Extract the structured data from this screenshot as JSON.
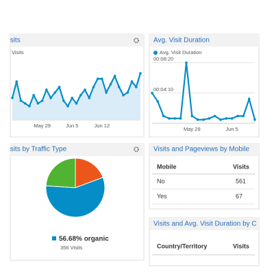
{
  "visits": {
    "title": "Visits",
    "legend": "Visits",
    "categories": [
      null,
      null,
      null,
      null,
      null,
      null,
      null,
      "May 29",
      null,
      null,
      null,
      null,
      null,
      null,
      "Jun 5",
      null,
      null,
      null,
      null,
      null,
      null,
      "Jun 12",
      null,
      null,
      null,
      null,
      null,
      null,
      null,
      null,
      null
    ],
    "values": [
      40,
      70,
      35,
      30,
      25,
      45,
      30,
      35,
      55,
      40,
      50,
      60,
      35,
      25,
      40,
      30,
      45,
      55,
      40,
      60,
      75,
      75,
      50,
      65,
      80,
      60,
      45,
      50,
      70,
      60,
      85
    ],
    "ylim": [
      0,
      100
    ],
    "color": "#058dc7"
  },
  "duration": {
    "title": "Avg. Visit Duration",
    "legend": "Avg. Visit Duration",
    "categories": [
      null,
      null,
      null,
      null,
      null,
      null,
      null,
      "May 29",
      null,
      null,
      null,
      null,
      null,
      null,
      "Jun 5",
      null,
      null,
      null,
      null
    ],
    "values": [
      250,
      180,
      60,
      40,
      40,
      40,
      500,
      60,
      30,
      30,
      40,
      60,
      30,
      40,
      40,
      60,
      60,
      200,
      30
    ],
    "ylim": [
      0,
      520
    ],
    "yticks": [
      {
        "value": 250,
        "label": "00:04:10"
      },
      {
        "value": 500,
        "label": "00:08:20"
      }
    ],
    "color": "#058dc7"
  },
  "traffic": {
    "title": "Visits by Traffic Type",
    "slices": [
      {
        "value": 19.32,
        "color": "#ed561b"
      },
      {
        "value": 56.68,
        "color": "#058dc7"
      },
      {
        "value": 24,
        "color": "#50b432"
      }
    ],
    "legend_label": "56.68% organic",
    "visits_label": "356 Visits"
  },
  "mobile": {
    "title": "Visits and Pageviews by Mobile",
    "columns": [
      "Mobile",
      "Visits"
    ],
    "rows": [
      [
        "No",
        "561"
      ],
      [
        "Yes",
        "67"
      ]
    ]
  },
  "country": {
    "title": "Visits and Avg. Visit Duration by Country",
    "columns": [
      "Country/Territory",
      "Visits"
    ]
  }
}
